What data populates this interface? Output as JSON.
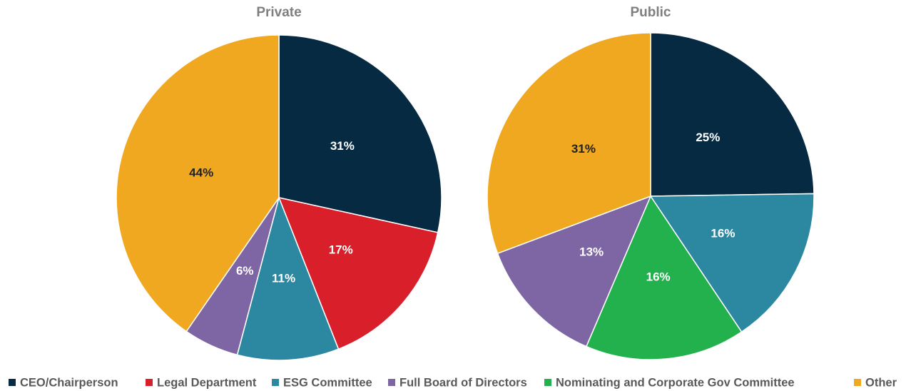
{
  "chart_data": [
    {
      "type": "pie",
      "title": "Private",
      "categories": [
        "CEO/Chairperson",
        "Legal Department",
        "ESG Committee",
        "Full Board of Directors",
        "Other"
      ],
      "values": [
        31,
        17,
        11,
        6,
        44
      ],
      "value_labels": [
        "31%",
        "17%",
        "11%",
        "6%",
        "44%"
      ],
      "colors": [
        "#072a43",
        "#d81f2a",
        "#2c88a0",
        "#7e65a4",
        "#efa820"
      ]
    },
    {
      "type": "pie",
      "title": "Public",
      "categories": [
        "CEO/Chairperson",
        "ESG Committee",
        "Nominating and Corporate Gov Committee",
        "Full Board of Directors",
        "Other"
      ],
      "values": [
        25,
        16,
        16,
        13,
        31
      ],
      "value_labels": [
        "25%",
        "16%",
        "16%",
        "13%",
        "31%"
      ],
      "colors": [
        "#072a43",
        "#2c88a0",
        "#22b14c",
        "#7e65a4",
        "#efa820"
      ]
    }
  ],
  "legend": [
    {
      "name": "CEO/Chairperson",
      "color": "#072a43"
    },
    {
      "name": "Legal Department",
      "color": "#d81f2a"
    },
    {
      "name": "ESG Committee",
      "color": "#2c88a0"
    },
    {
      "name": "Full Board of Directors",
      "color": "#7e65a4"
    },
    {
      "name": "Nominating and Corporate Gov Committee",
      "color": "#22b14c"
    },
    {
      "name": "Other",
      "color": "#efa820"
    }
  ]
}
